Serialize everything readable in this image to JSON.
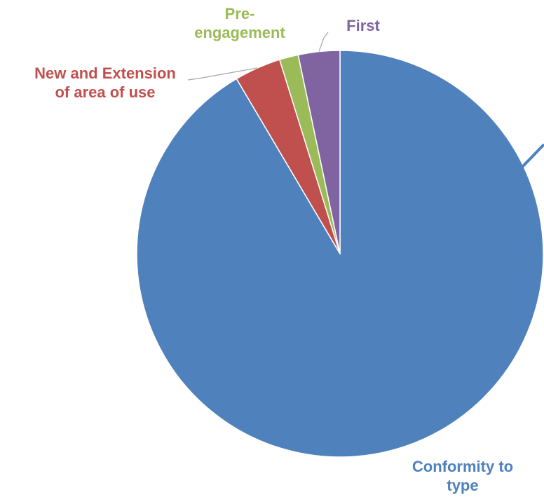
{
  "colors": {
    "background": "#ffffff",
    "slice_border": "#ffffff",
    "leader_gray": "#a6a6a6"
  },
  "chart_data": {
    "type": "pie",
    "title": "",
    "start_angle_deg": 0,
    "direction": "clockwise",
    "slices": [
      {
        "label_lines": [
          "Conformity to",
          "type"
        ],
        "value": 91.5,
        "color": "#4f81bd"
      },
      {
        "label_lines": [
          "New and Extension",
          "of area of use"
        ],
        "value": 3.7,
        "color": "#c0504d"
      },
      {
        "label_lines": [
          "Pre-",
          "engagement"
        ],
        "value": 1.5,
        "color": "#9bbb59"
      },
      {
        "label_lines": [
          "First"
        ],
        "value": 3.3,
        "color": "#8064a2"
      }
    ],
    "legend": "none"
  }
}
